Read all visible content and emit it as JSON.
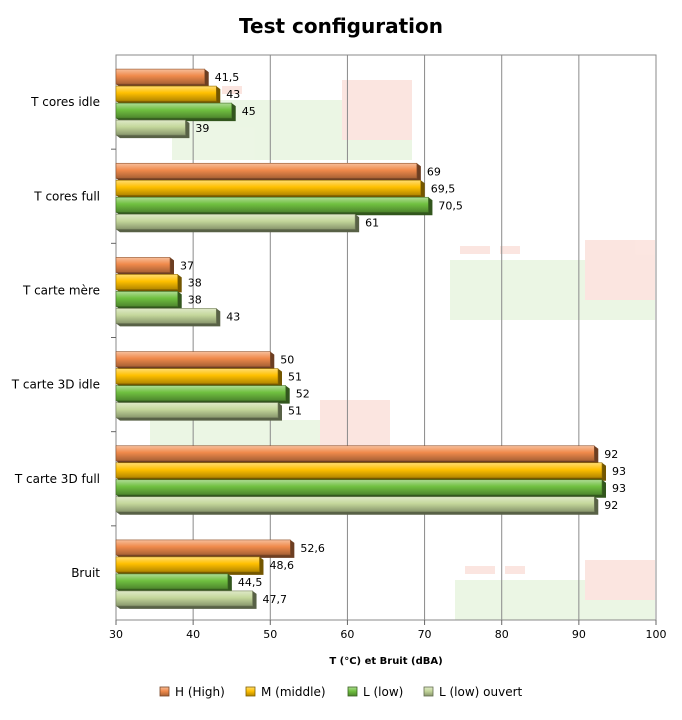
{
  "chart_data": {
    "type": "bar",
    "orientation": "horizontal",
    "title": "Test configuration",
    "xlabel": "T (°C) et Bruit (dBA)",
    "ylabel": "",
    "xlim": [
      30,
      100
    ],
    "ticks": [
      30,
      40,
      50,
      60,
      70,
      80,
      90,
      100
    ],
    "grid": true,
    "legend_position": "bottom",
    "categories": [
      "T cores idle",
      "T cores full",
      "T carte mère",
      "T carte 3D idle",
      "T carte 3D full",
      "Bruit"
    ],
    "series": [
      {
        "name": "H (High)",
        "color": "#f08a4b",
        "values": [
          41.5,
          69,
          37,
          50,
          92,
          52.6
        ],
        "labels": [
          "41,5",
          "69",
          "37",
          "50",
          "92",
          "52,6"
        ]
      },
      {
        "name": "M (middle)",
        "color": "#ffc000",
        "values": [
          43,
          69.5,
          38,
          51,
          93,
          48.6
        ],
        "labels": [
          "43",
          "69,5",
          "38",
          "51",
          "93",
          "48,6"
        ]
      },
      {
        "name": "L (low)",
        "color": "#70c040",
        "values": [
          45,
          70.5,
          38,
          52,
          93,
          44.5
        ],
        "labels": [
          "45",
          "70,5",
          "38",
          "52",
          "93",
          "44,5"
        ]
      },
      {
        "name": "L (low) ouvert",
        "color": "#c4d79b",
        "values": [
          39,
          61,
          43,
          51,
          92,
          47.7
        ],
        "labels": [
          "39",
          "61",
          "43",
          "51",
          "92",
          "47,7"
        ]
      }
    ]
  }
}
